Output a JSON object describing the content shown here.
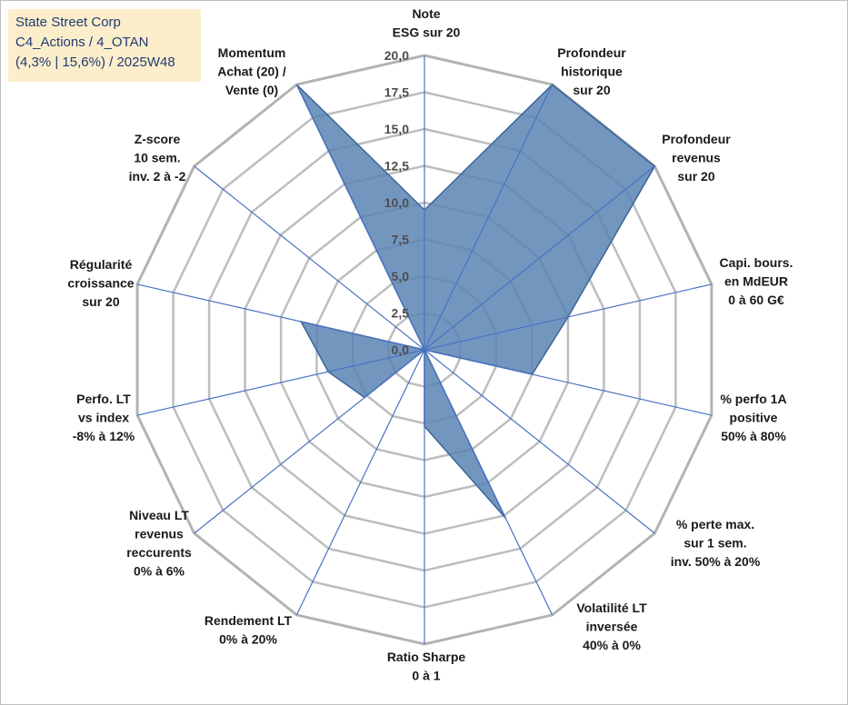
{
  "info_box": {
    "line1": "State Street Corp",
    "line2": "C4_Actions / 4_OTAN",
    "line3": "(4,3% | 15,6%) / 2025W48"
  },
  "chart_data": {
    "type": "radar",
    "title": "State Street Corp",
    "rmax": 20,
    "ticks": [
      "0,0",
      "2,5",
      "5,0",
      "7,5",
      "10,0",
      "12,5",
      "15,0",
      "17,5",
      "20,0"
    ],
    "grid_step": 2.5,
    "axes": [
      {
        "label": [
          "Note",
          "ESG sur 20"
        ],
        "value": 9.5
      },
      {
        "label": [
          "Profondeur",
          "historique",
          "sur 20"
        ],
        "value": 20
      },
      {
        "label": [
          "Profondeur",
          "revenus",
          "sur 20"
        ],
        "value": 20
      },
      {
        "label": [
          "Capi. bours.",
          "en MdEUR",
          "0 à 60 G€"
        ],
        "value": 10
      },
      {
        "label": [
          "% perfo 1A",
          "positive",
          "50% à 80%"
        ],
        "value": 7.5
      },
      {
        "label": [
          "% perte max.",
          "sur 1 sem.",
          "inv. 50% à 20%"
        ],
        "value": 0
      },
      {
        "label": [
          "Volatilité LT",
          "inversée",
          "40% à 0%"
        ],
        "value": 12.7
      },
      {
        "label": [
          "Ratio Sharpe",
          "0 à 1"
        ],
        "value": 5.2
      },
      {
        "label": [
          "Rendement LT",
          "0% à 20%"
        ],
        "value": 0
      },
      {
        "label": [
          "Niveau LT",
          "revenus",
          "reccurents",
          "0% à 6%"
        ],
        "value": 5.2
      },
      {
        "label": [
          "Perfo. LT",
          "vs index",
          "-8% à 12%"
        ],
        "value": 6.7
      },
      {
        "label": [
          "Régularité",
          "croissance",
          "sur 20"
        ],
        "value": 8.6
      },
      {
        "label": [
          "Z-score",
          "10 sem.",
          "inv. 2 à -2"
        ],
        "value": 0
      },
      {
        "label": [
          "Momentum",
          "Achat (20) /",
          "Vente (0)"
        ],
        "value": 20
      }
    ],
    "colors": {
      "fill": "#5b84b4",
      "stroke": "#3a6598",
      "spoke": "#4a72c4",
      "grid": "#bdbdbd",
      "grid_outer": "#b3b3b3"
    }
  }
}
